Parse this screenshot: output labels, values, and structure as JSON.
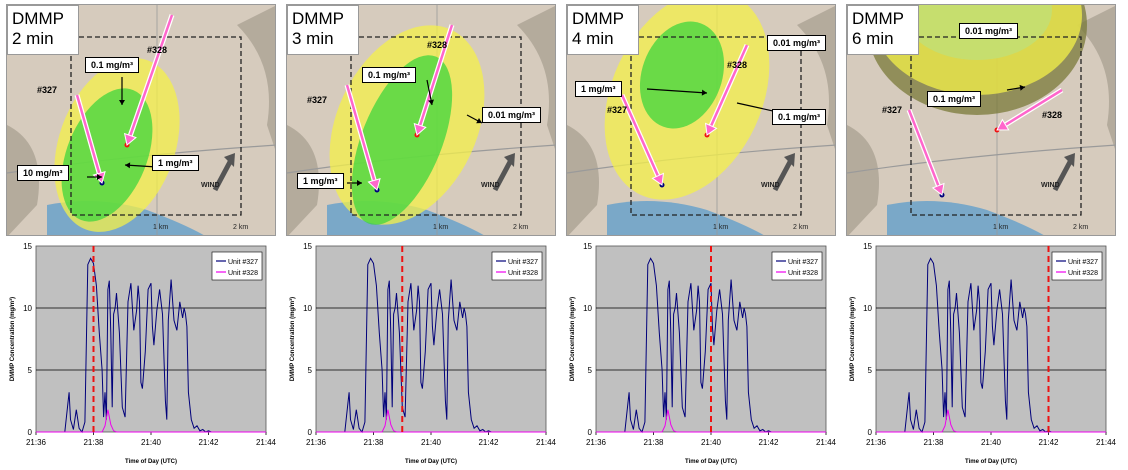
{
  "units": {
    "u327": "#327",
    "u328": "#328"
  },
  "scale": {
    "one_km": "1 km",
    "two_km": "2 km"
  },
  "wind_label": "WIND",
  "colors": {
    "unit327": "#00007a",
    "unit328": "#ee00ee",
    "marker": "#ee1111",
    "plot_bg": "#c0c0c0",
    "green": "#3dd63d",
    "yellow": "#f4f04a"
  },
  "panels": [
    {
      "time_label": [
        "DMMP",
        "2 min"
      ],
      "conc_labels": [
        "0.1 mg/m³",
        "10 mg/m³",
        "1 mg/m³"
      ]
    },
    {
      "time_label": [
        "DMMP",
        "3 min"
      ],
      "conc_labels": [
        "0.1 mg/m³",
        "0.01 mg/m³",
        "1 mg/m³"
      ]
    },
    {
      "time_label": [
        "DMMP",
        "4 min"
      ],
      "conc_labels": [
        "0.01 mg/m³",
        "1 mg/m³",
        "0.1 mg/m³"
      ]
    },
    {
      "time_label": [
        "DMMP",
        "6 min"
      ],
      "conc_labels": [
        "0.01 mg/m³",
        "0.1 mg/m³"
      ]
    }
  ],
  "chart_data": [
    {
      "type": "line",
      "xlabel": "Time of Day (UTC)",
      "ylabel": "DMMP Concentration (mg/m³)",
      "x_ticks": [
        "21:36",
        "21:38",
        "21:40",
        "21:42",
        "21:44"
      ],
      "xlim_minutes": [
        0,
        8
      ],
      "ylim": [
        0,
        15
      ],
      "y_ticks": [
        0,
        5,
        10,
        15
      ],
      "grid": true,
      "legend_position": "top-right",
      "marker_time": "21:38",
      "series": [
        {
          "name": "Unit #327",
          "x_minutes": [
            0.5,
            1.0,
            1.15,
            1.2,
            1.3,
            1.4,
            1.5,
            1.6,
            1.7,
            1.8,
            1.9,
            2.0,
            2.1,
            2.2,
            2.3,
            2.35,
            2.4,
            2.45,
            2.5,
            2.55,
            2.6,
            2.65,
            2.7,
            2.75,
            2.8,
            2.9,
            3.0,
            3.1,
            3.2,
            3.3,
            3.4,
            3.5,
            3.55,
            3.6,
            3.65,
            3.7,
            3.8,
            3.9,
            4.0,
            4.05,
            4.1,
            4.2,
            4.3,
            4.4,
            4.5,
            4.55,
            4.6,
            4.7,
            4.8,
            4.9,
            5.0,
            5.1,
            5.15,
            5.2,
            5.25,
            5.3,
            5.4,
            5.5,
            5.6,
            5.7,
            5.8,
            5.9,
            6.0,
            6.1,
            6.2,
            6.3,
            6.4,
            6.5,
            7.0
          ],
          "y": [
            0,
            0,
            3.2,
            1.0,
            0.2,
            1.8,
            0.3,
            0,
            0.8,
            13.5,
            14.0,
            13.6,
            11.8,
            8.0,
            5.0,
            1.2,
            3.2,
            1.0,
            11.5,
            12.2,
            8.0,
            2.0,
            9.5,
            10.0,
            11.2,
            8.0,
            2.0,
            1.2,
            10.5,
            12.0,
            8.2,
            9.8,
            11.8,
            10.5,
            4.0,
            3.5,
            6.5,
            11.5,
            12.0,
            8.5,
            7.0,
            9.8,
            11.5,
            9.5,
            2.5,
            1.0,
            9.0,
            12.3,
            9.0,
            8.2,
            10.5,
            9.2,
            10.0,
            9.5,
            8.5,
            3.2,
            1.0,
            0.3,
            0.5,
            0.1,
            0.2,
            0,
            0.1,
            0,
            0,
            0,
            0,
            0,
            0
          ]
        },
        {
          "name": "Unit #328",
          "x_minutes": [
            0,
            2.3,
            2.4,
            2.5,
            2.6,
            2.7,
            2.8,
            8.0
          ],
          "y": [
            0,
            0,
            0.5,
            1.8,
            0.6,
            0.1,
            0,
            0
          ]
        }
      ]
    },
    {
      "type": "line",
      "xlabel": "Time of Day (UTC)",
      "ylabel": "DMMP Concentration (mg/m³)",
      "x_ticks": [
        "21:36",
        "21:38",
        "21:40",
        "21:42",
        "21:44"
      ],
      "xlim_minutes": [
        0,
        8
      ],
      "ylim": [
        0,
        15
      ],
      "y_ticks": [
        0,
        5,
        10,
        15
      ],
      "grid": true,
      "legend_position": "top-right",
      "marker_time": "21:39",
      "series": [
        {
          "name": "Unit #327",
          "x_minutes": [
            0.5,
            1.0,
            1.15,
            1.2,
            1.3,
            1.4,
            1.5,
            1.6,
            1.7,
            1.8,
            1.9,
            2.0,
            2.1,
            2.2,
            2.3,
            2.35,
            2.4,
            2.45,
            2.5,
            2.55,
            2.6,
            2.65,
            2.7,
            2.75,
            2.8,
            2.9,
            3.0,
            3.1,
            3.2,
            3.3,
            3.4,
            3.5,
            3.55,
            3.6,
            3.65,
            3.7,
            3.8,
            3.9,
            4.0,
            4.05,
            4.1,
            4.2,
            4.3,
            4.4,
            4.5,
            4.55,
            4.6,
            4.7,
            4.8,
            4.9,
            5.0,
            5.1,
            5.15,
            5.2,
            5.25,
            5.3,
            5.4,
            5.5,
            5.6,
            5.7,
            5.8,
            5.9,
            6.0,
            6.1,
            6.2,
            6.3,
            6.4,
            6.5,
            7.0
          ],
          "y": [
            0,
            0,
            3.2,
            1.0,
            0.2,
            1.8,
            0.3,
            0,
            0.8,
            13.5,
            14.0,
            13.6,
            11.8,
            8.0,
            5.0,
            1.2,
            3.2,
            1.0,
            11.5,
            12.2,
            8.0,
            2.0,
            9.5,
            10.0,
            11.2,
            8.0,
            2.0,
            1.2,
            10.5,
            12.0,
            8.2,
            9.8,
            11.8,
            10.5,
            4.0,
            3.5,
            6.5,
            11.5,
            12.0,
            8.5,
            7.0,
            9.8,
            11.5,
            9.5,
            2.5,
            1.0,
            9.0,
            12.3,
            9.0,
            8.2,
            10.5,
            9.2,
            10.0,
            9.5,
            8.5,
            3.2,
            1.0,
            0.3,
            0.5,
            0.1,
            0.2,
            0,
            0.1,
            0,
            0,
            0,
            0,
            0,
            0
          ]
        },
        {
          "name": "Unit #328",
          "x_minutes": [
            0,
            2.3,
            2.4,
            2.5,
            2.6,
            2.7,
            2.8,
            8.0
          ],
          "y": [
            0,
            0,
            0.5,
            1.8,
            0.6,
            0.1,
            0,
            0
          ]
        }
      ]
    },
    {
      "type": "line",
      "xlabel": "Time of Day (UTC)",
      "ylabel": "DMMP Concentration (mg/m³)",
      "x_ticks": [
        "21:36",
        "21:38",
        "21:40",
        "21:42",
        "21:44"
      ],
      "xlim_minutes": [
        0,
        8
      ],
      "ylim": [
        0,
        15
      ],
      "y_ticks": [
        0,
        5,
        10,
        15
      ],
      "grid": true,
      "legend_position": "top-right",
      "marker_time": "21:40",
      "series": [
        {
          "name": "Unit #327",
          "x_minutes": [
            0.5,
            1.0,
            1.15,
            1.2,
            1.3,
            1.4,
            1.5,
            1.6,
            1.7,
            1.8,
            1.9,
            2.0,
            2.1,
            2.2,
            2.3,
            2.35,
            2.4,
            2.45,
            2.5,
            2.55,
            2.6,
            2.65,
            2.7,
            2.75,
            2.8,
            2.9,
            3.0,
            3.1,
            3.2,
            3.3,
            3.4,
            3.5,
            3.55,
            3.6,
            3.65,
            3.7,
            3.8,
            3.9,
            4.0,
            4.05,
            4.1,
            4.2,
            4.3,
            4.4,
            4.5,
            4.55,
            4.6,
            4.7,
            4.8,
            4.9,
            5.0,
            5.1,
            5.15,
            5.2,
            5.25,
            5.3,
            5.4,
            5.5,
            5.6,
            5.7,
            5.8,
            5.9,
            6.0,
            6.1,
            6.2,
            6.3,
            6.4,
            6.5,
            7.0
          ],
          "y": [
            0,
            0,
            3.2,
            1.0,
            0.2,
            1.8,
            0.3,
            0,
            0.8,
            13.5,
            14.0,
            13.6,
            11.8,
            8.0,
            5.0,
            1.2,
            3.2,
            1.0,
            11.5,
            12.2,
            8.0,
            2.0,
            9.5,
            10.0,
            11.2,
            8.0,
            2.0,
            1.2,
            10.5,
            12.0,
            8.2,
            9.8,
            11.8,
            10.5,
            4.0,
            3.5,
            6.5,
            11.5,
            12.0,
            8.5,
            7.0,
            9.8,
            11.5,
            9.5,
            2.5,
            1.0,
            9.0,
            12.3,
            9.0,
            8.2,
            10.5,
            9.2,
            10.0,
            9.5,
            8.5,
            3.2,
            1.0,
            0.3,
            0.5,
            0.1,
            0.2,
            0,
            0.1,
            0,
            0,
            0,
            0,
            0,
            0
          ]
        },
        {
          "name": "Unit #328",
          "x_minutes": [
            0,
            2.3,
            2.4,
            2.5,
            2.6,
            2.7,
            2.8,
            8.0
          ],
          "y": [
            0,
            0,
            0.5,
            1.8,
            0.6,
            0.1,
            0,
            0
          ]
        }
      ]
    },
    {
      "type": "line",
      "xlabel": "Time of Day (UTC)",
      "ylabel": "DMMP Concentration (mg/m³)",
      "x_ticks": [
        "21:36",
        "21:38",
        "21:40",
        "21:42",
        "21:44"
      ],
      "xlim_minutes": [
        0,
        8
      ],
      "ylim": [
        0,
        15
      ],
      "y_ticks": [
        0,
        5,
        10,
        15
      ],
      "grid": true,
      "legend_position": "top-right",
      "marker_time": "21:42",
      "series": [
        {
          "name": "Unit #327",
          "x_minutes": [
            0.5,
            1.0,
            1.15,
            1.2,
            1.3,
            1.4,
            1.5,
            1.6,
            1.7,
            1.8,
            1.9,
            2.0,
            2.1,
            2.2,
            2.3,
            2.35,
            2.4,
            2.45,
            2.5,
            2.55,
            2.6,
            2.65,
            2.7,
            2.75,
            2.8,
            2.9,
            3.0,
            3.1,
            3.2,
            3.3,
            3.4,
            3.5,
            3.55,
            3.6,
            3.65,
            3.7,
            3.8,
            3.9,
            4.0,
            4.05,
            4.1,
            4.2,
            4.3,
            4.4,
            4.5,
            4.55,
            4.6,
            4.7,
            4.8,
            4.9,
            5.0,
            5.1,
            5.15,
            5.2,
            5.25,
            5.3,
            5.4,
            5.5,
            5.6,
            5.7,
            5.8,
            5.9,
            6.0,
            6.1,
            6.2,
            6.3,
            6.4,
            6.5,
            7.0
          ],
          "y": [
            0,
            0,
            3.2,
            1.0,
            0.2,
            1.8,
            0.3,
            0,
            0.8,
            13.5,
            14.0,
            13.6,
            11.8,
            8.0,
            5.0,
            1.2,
            3.2,
            1.0,
            11.5,
            12.2,
            8.0,
            2.0,
            9.5,
            10.0,
            11.2,
            8.0,
            2.0,
            1.2,
            10.5,
            12.0,
            8.2,
            9.8,
            11.8,
            10.5,
            4.0,
            3.5,
            6.5,
            11.5,
            12.0,
            8.5,
            7.0,
            9.8,
            11.5,
            9.5,
            2.5,
            1.0,
            9.0,
            12.3,
            9.0,
            8.2,
            10.5,
            9.2,
            10.0,
            9.5,
            8.5,
            3.2,
            1.0,
            0.3,
            0.5,
            0.1,
            0.2,
            0,
            0.1,
            0,
            0,
            0,
            0,
            0,
            0
          ]
        },
        {
          "name": "Unit #328",
          "x_minutes": [
            0,
            2.3,
            2.4,
            2.5,
            2.6,
            2.7,
            2.8,
            8.0
          ],
          "y": [
            0,
            0,
            0.5,
            1.8,
            0.6,
            0.1,
            0,
            0
          ]
        }
      ]
    }
  ]
}
